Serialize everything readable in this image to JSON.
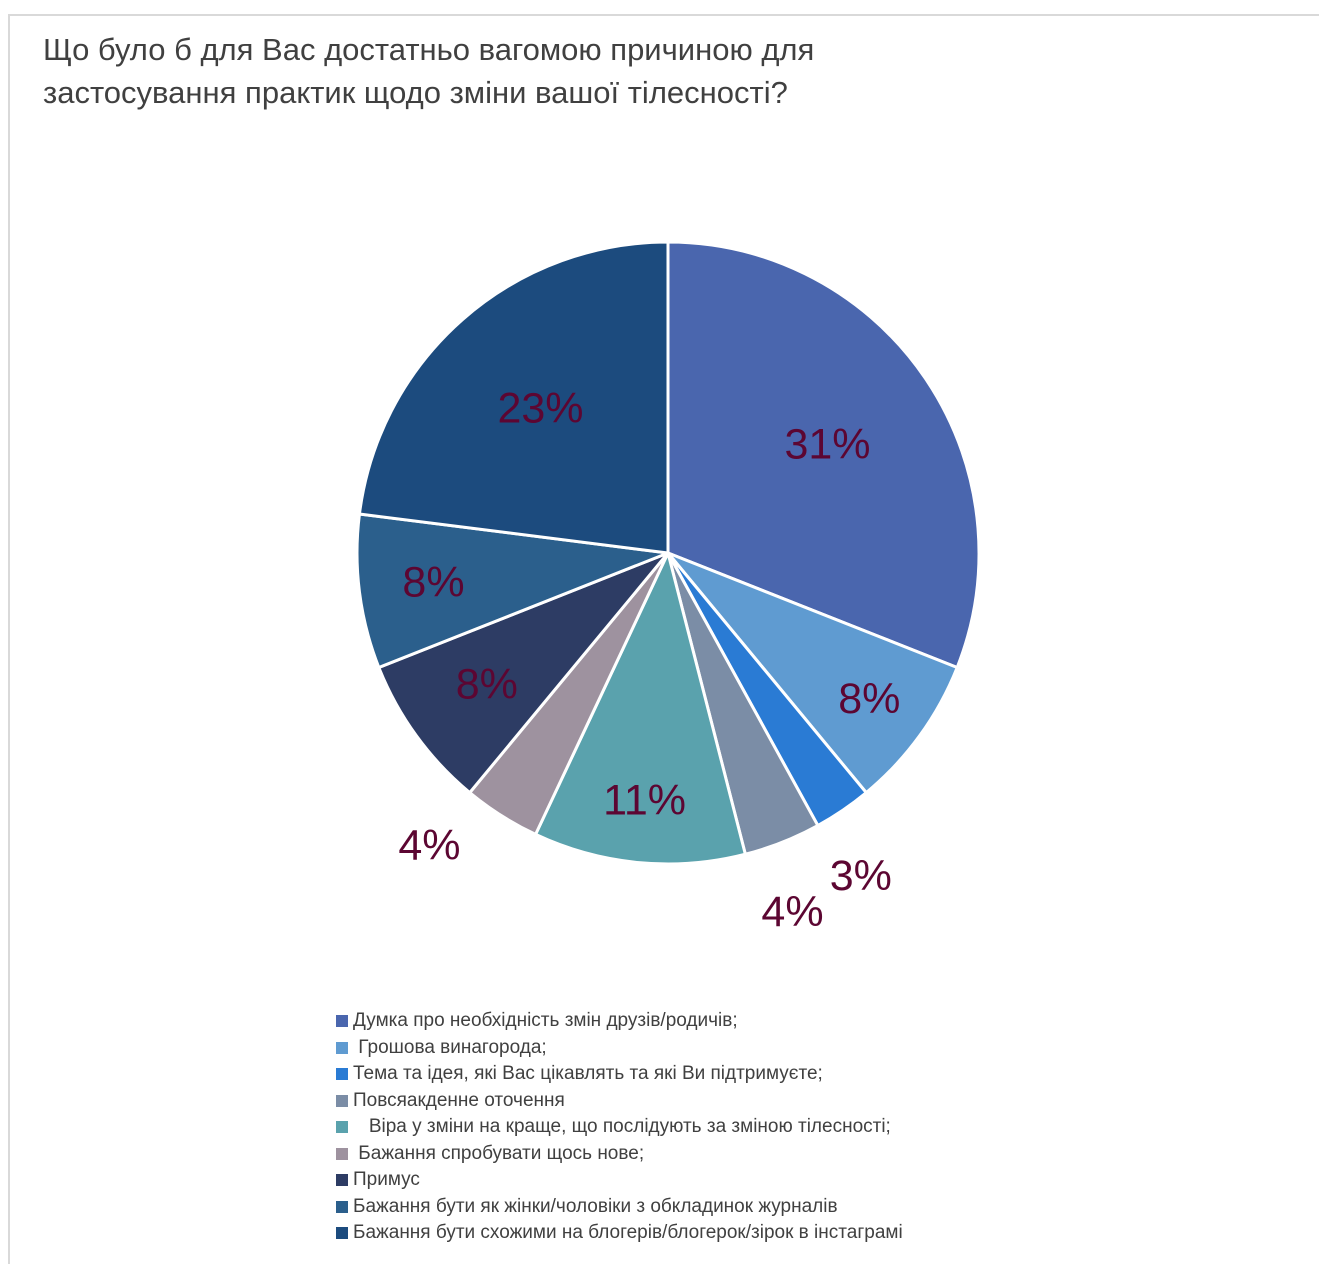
{
  "chart_data": {
    "type": "pie",
    "title": "Що було б для Вас достатньо вагомою причиною для застосування практик щодо зміни вашої тілесності?",
    "label_color": "#5c0632",
    "slices": [
      {
        "label": "Думка про необхідність змін друзів/родичів;",
        "value": 31,
        "display": "31%",
        "color": "#4a66ae"
      },
      {
        "label": " Грошова винагорода;",
        "value": 8,
        "display": "8%",
        "color": "#5f9bd1"
      },
      {
        "label": "Тема та ідея, які Вас цікавлять та які Ви підтримуєте;",
        "value": 3,
        "display": "3%",
        "color": "#2a7bd4"
      },
      {
        "label": "Повсяакденне оточення",
        "value": 4,
        "display": "4%",
        "color": "#7b8da6"
      },
      {
        "label": "   Віра у зміни на краще, що послідують за зміною тілесності;",
        "value": 11,
        "display": "11%",
        "color": "#5aa2ad"
      },
      {
        "label": " Бажання спробувати щось нове;",
        "value": 4,
        "display": "4%",
        "color": "#9e929f"
      },
      {
        "label": "Примус",
        "value": 8,
        "display": "8%",
        "color": "#2d3c64"
      },
      {
        "label": "Бажання бути як жінки/чоловіки з обкладинок журналів",
        "value": 8,
        "display": "8%",
        "color": "#2b5f8c"
      },
      {
        "label": "Бажання бути схожими на блогерів/блогерок/зірок в інстаграмі",
        "value": 23,
        "display": "23%",
        "color": "#1c4b7e"
      }
    ]
  }
}
